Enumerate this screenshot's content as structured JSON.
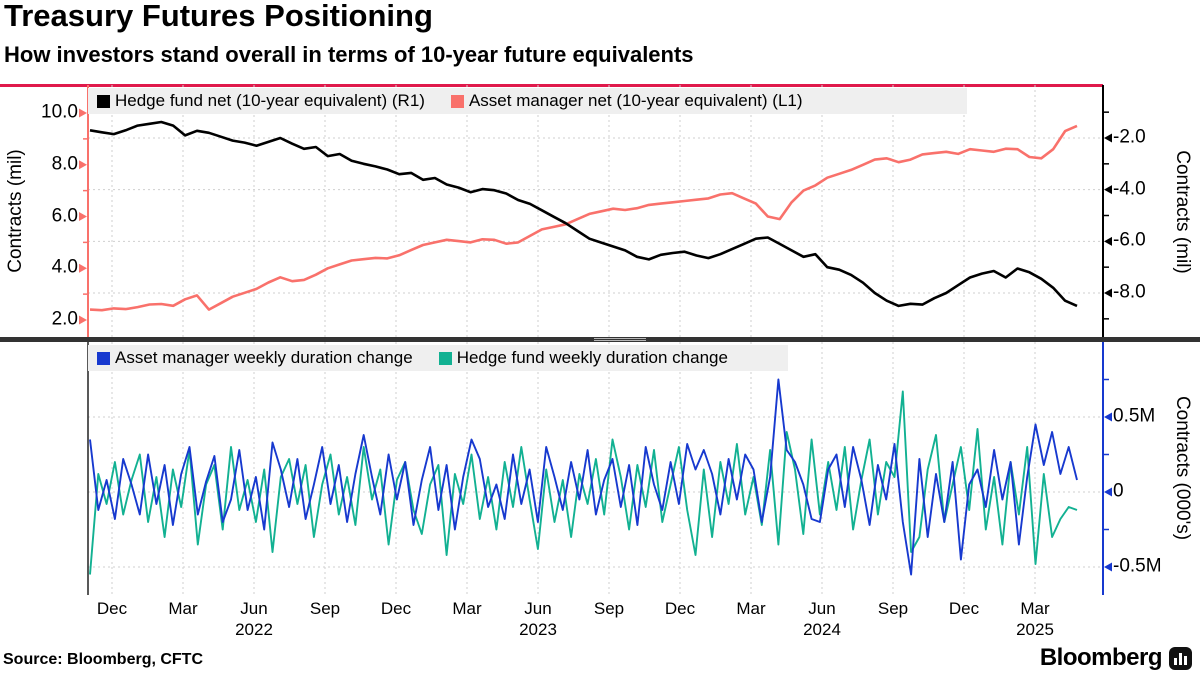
{
  "header": {
    "title": "Treasury Futures Positioning",
    "subtitle": "How investors stand overall in terms of 10-year future equivalents"
  },
  "source": "Source: Bloomberg, CFTC",
  "branding": {
    "logo_text": "Bloomberg",
    "logo_icon": "bar-chart-icon"
  },
  "colors": {
    "hedge_fund_net": "#000000",
    "asset_manager_net": "#f9716b",
    "asset_manager_duration": "#1739cf",
    "hedge_fund_duration": "#12b192",
    "top_border": "#e0194b",
    "grid": "#cfcfcf",
    "legend_bg": "#efefef",
    "divider": "#333333",
    "right_axis_top": "#000000",
    "right_axis_bottom": "#1739cf"
  },
  "top_panel": {
    "legend": [
      {
        "label": "Hedge fund net (10-year equivalent) (R1)",
        "color_key": "hedge_fund_net"
      },
      {
        "label": "Asset manager net (10-year equivalent) (L1)",
        "color_key": "asset_manager_net"
      }
    ],
    "left_axis": {
      "title": "Contracts (mil)",
      "tick_labels": [
        "10.0",
        "8.0",
        "6.0",
        "4.0",
        "2.0"
      ],
      "tick_values": [
        10,
        8,
        6,
        4,
        2
      ]
    },
    "right_axis": {
      "title": "Contracts (mil)",
      "tick_labels": [
        "-2.0",
        "-4.0",
        "-6.0",
        "-8.0"
      ],
      "tick_values": [
        -2,
        -4,
        -6,
        -8
      ]
    }
  },
  "bottom_panel": {
    "legend": [
      {
        "label": "Asset manager weekly duration change",
        "color_key": "asset_manager_duration"
      },
      {
        "label": "Hedge fund weekly duration change",
        "color_key": "hedge_fund_duration"
      }
    ],
    "right_axis": {
      "title": "Contracts (000's)",
      "tick_labels": [
        "0.5M",
        "0",
        "-0.5M"
      ],
      "tick_values": [
        0.5,
        0,
        -0.5
      ]
    }
  },
  "x_axis": {
    "months": [
      "Dec",
      "Mar",
      "Jun",
      "Sep",
      "Dec",
      "Mar",
      "Jun",
      "Sep",
      "Dec",
      "Mar",
      "Jun",
      "Sep",
      "Dec",
      "Mar"
    ],
    "years": [
      {
        "label": "2022",
        "tick": 2
      },
      {
        "label": "2023",
        "tick": 6
      },
      {
        "label": "2024",
        "tick": 10
      },
      {
        "label": "2025",
        "tick": 13
      }
    ]
  },
  "chart_data": [
    {
      "type": "line",
      "panel": "top",
      "x_start": "2021-11",
      "x_end": "2025-04",
      "x_interval": "biweekly",
      "left_ylim": [
        1.3,
        11.0
      ],
      "right_ylim": [
        -9.8,
        0.05
      ],
      "grid": "dashed, horizontal at right-axis ticks, vertical quarterly",
      "legend_position": "top-left strip",
      "series": [
        {
          "name": "Hedge fund net (10-year equivalent)",
          "axis": "R1",
          "color_key": "hedge_fund_net",
          "unit": "mil contracts",
          "values": [
            -1.7,
            -1.78,
            -1.85,
            -1.7,
            -1.52,
            -1.45,
            -1.38,
            -1.52,
            -1.9,
            -1.72,
            -1.8,
            -1.95,
            -2.1,
            -2.18,
            -2.3,
            -2.15,
            -2.0,
            -2.22,
            -2.42,
            -2.35,
            -2.7,
            -2.62,
            -2.88,
            -3.0,
            -3.1,
            -3.22,
            -3.4,
            -3.35,
            -3.62,
            -3.55,
            -3.8,
            -3.92,
            -4.1,
            -3.98,
            -4.02,
            -4.15,
            -4.4,
            -4.55,
            -4.8,
            -5.05,
            -5.3,
            -5.6,
            -5.9,
            -6.05,
            -6.2,
            -6.35,
            -6.6,
            -6.7,
            -6.52,
            -6.45,
            -6.4,
            -6.55,
            -6.65,
            -6.5,
            -6.3,
            -6.1,
            -5.9,
            -5.85,
            -6.1,
            -6.35,
            -6.6,
            -6.5,
            -7.0,
            -7.1,
            -7.3,
            -7.6,
            -8.0,
            -8.3,
            -8.5,
            -8.42,
            -8.45,
            -8.2,
            -8.0,
            -7.7,
            -7.4,
            -7.25,
            -7.15,
            -7.4,
            -7.05,
            -7.2,
            -7.45,
            -7.8,
            -8.3,
            -8.5
          ]
        },
        {
          "name": "Asset manager net (10-year equivalent)",
          "axis": "L1",
          "color_key": "asset_manager_net",
          "unit": "mil contracts",
          "values": [
            2.4,
            2.38,
            2.45,
            2.42,
            2.5,
            2.6,
            2.62,
            2.55,
            2.8,
            2.95,
            2.4,
            2.65,
            2.9,
            3.05,
            3.2,
            3.45,
            3.65,
            3.5,
            3.55,
            3.75,
            4.0,
            4.15,
            4.3,
            4.35,
            4.4,
            4.38,
            4.5,
            4.7,
            4.9,
            5.0,
            5.1,
            5.05,
            5.0,
            5.12,
            5.1,
            4.95,
            5.0,
            5.25,
            5.5,
            5.6,
            5.7,
            5.9,
            6.1,
            6.2,
            6.3,
            6.25,
            6.32,
            6.45,
            6.5,
            6.55,
            6.6,
            6.65,
            6.7,
            6.85,
            6.9,
            6.7,
            6.5,
            6.0,
            5.9,
            6.55,
            7.0,
            7.2,
            7.5,
            7.65,
            7.8,
            8.0,
            8.2,
            8.25,
            8.1,
            8.2,
            8.4,
            8.45,
            8.5,
            8.42,
            8.6,
            8.55,
            8.5,
            8.62,
            8.6,
            8.3,
            8.25,
            8.6,
            9.3,
            9.5
          ]
        }
      ]
    },
    {
      "type": "line",
      "panel": "bottom",
      "x_start": "2021-11",
      "x_end": "2025-04",
      "x_interval": "weekly (approx.)",
      "ylim": [
        -0.75,
        0.9
      ],
      "grid": "dashed, horizontal at 0.5M/0/-0.5M, vertical quarterly",
      "legend_position": "top-left strip",
      "series": [
        {
          "name": "Asset manager weekly duration change",
          "axis": "R",
          "color_key": "asset_manager_duration",
          "unit": "M contracts (000's)",
          "values": [
            0.35,
            -0.12,
            0.08,
            -0.18,
            0.22,
            0.05,
            -0.15,
            0.25,
            -0.08,
            0.18,
            -0.22,
            0.12,
            0.3,
            -0.15,
            0.07,
            0.24,
            -0.2,
            -0.05,
            0.28,
            -0.12,
            0.1,
            -0.25,
            0.33,
            0.15,
            -0.1,
            0.22,
            -0.18,
            0.05,
            0.3,
            -0.08,
            0.18,
            -0.2,
            0.12,
            0.38,
            0.1,
            -0.15,
            0.25,
            -0.05,
            0.2,
            -0.22,
            0.08,
            0.3,
            -0.12,
            0.18,
            -0.25,
            0.1,
            0.35,
            0.22,
            -0.1,
            0.05,
            -0.18,
            0.25,
            -0.08,
            0.15,
            -0.2,
            0.3,
            0.1,
            -0.12,
            0.2,
            -0.05,
            0.28,
            -0.15,
            0.08,
            0.22,
            -0.1,
            0.18,
            -0.22,
            0.3,
            0.05,
            -0.12,
            0.2,
            -0.08,
            0.32,
            0.15,
            0.28,
            0.12,
            -0.15,
            0.22,
            -0.05,
            0.25,
            0.15,
            -0.2,
            0.1,
            0.75,
            0.28,
            0.2,
            0.05,
            -0.18,
            -0.2,
            0.15,
            0.25,
            -0.1,
            0.3,
            0.08,
            -0.22,
            0.18,
            -0.05,
            0.32,
            -0.2,
            -0.55,
            0.22,
            -0.3,
            0.12,
            -0.2,
            0.2,
            -0.45,
            0.05,
            0.15,
            -0.1,
            0.28,
            -0.05,
            0.2,
            -0.35,
            0.1,
            0.45,
            0.18,
            0.4,
            0.12,
            0.3,
            0.08
          ]
        },
        {
          "name": "Hedge fund weekly duration change",
          "axis": "R",
          "color_key": "hedge_fund_duration",
          "unit": "M contracts (000's)",
          "values": [
            -0.55,
            0.12,
            -0.08,
            0.2,
            -0.15,
            0.08,
            0.25,
            -0.2,
            0.1,
            -0.3,
            0.15,
            -0.1,
            0.28,
            -0.35,
            0.05,
            0.18,
            -0.25,
            0.3,
            -0.12,
            0.08,
            -0.2,
            0.15,
            -0.4,
            0.1,
            0.22,
            -0.08,
            0.18,
            -0.3,
            0.05,
            0.25,
            -0.15,
            0.1,
            -0.22,
            0.3,
            -0.05,
            0.15,
            -0.35,
            0.08,
            0.2,
            -0.12,
            -0.28,
            0.05,
            0.18,
            -0.42,
            0.12,
            -0.08,
            0.25,
            -0.18,
            0.1,
            -0.25,
            0.2,
            -0.1,
            0.3,
            -0.05,
            -0.38,
            0.15,
            -0.2,
            0.08,
            -0.3,
            0.12,
            -0.08,
            0.22,
            -0.15,
            0.35,
            0.1,
            -0.25,
            0.18,
            -0.1,
            0.28,
            -0.2,
            0.05,
            0.3,
            -0.12,
            -0.42,
            0.15,
            -0.3,
            0.2,
            -0.08,
            0.32,
            -0.15,
            0.1,
            -0.22,
            0.28,
            -0.35,
            0.4,
            0.15,
            -0.28,
            0.35,
            -0.15,
            0.2,
            -0.12,
            0.3,
            -0.25,
            0.08,
            0.35,
            -0.15,
            0.2,
            0.1,
            0.67,
            -0.4,
            -0.3,
            0.15,
            0.38,
            -0.2,
            0.05,
            0.3,
            -0.12,
            0.42,
            -0.25,
            0.1,
            -0.35,
            0.2,
            -0.15,
            0.3,
            -0.48,
            0.12,
            -0.3,
            -0.18,
            -0.1,
            -0.12
          ]
        }
      ]
    }
  ]
}
